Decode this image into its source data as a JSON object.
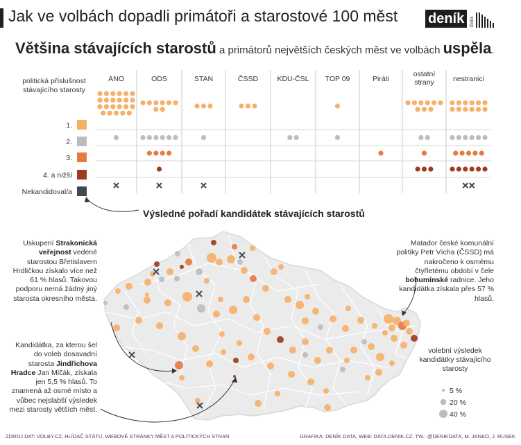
{
  "header": {
    "title": "Jak ve volbách dopadli primátoři a starostové 100 měst",
    "logo_main": "deník",
    "logo_sub": "data"
  },
  "subtitle": {
    "bold1": "Většina stávajících starostů",
    "normal": " a primátorů největších českých měst ve volbách ",
    "bold2": "uspěla",
    "dot": "."
  },
  "colors": {
    "rank1": "#f5b06a",
    "rank2": "#bdbdbd",
    "rank3": "#e77a3f",
    "rank4": "#9c3d22",
    "none": "#3d4a55"
  },
  "chart_data": [
    {
      "type": "table",
      "row_header": [
        "politická příslušnost",
        "stávajícího starosty"
      ],
      "columns": [
        "ANO",
        "ODS",
        "STAN",
        "ČSSD",
        "KDU-ČSL",
        "TOP 09",
        "Piráti",
        "ostatní strany",
        "nestranici"
      ],
      "rows": [
        "1.",
        "2.",
        "3.",
        "4. a nižší",
        "Nekandidoval/a"
      ],
      "caption": "Výsledné pořadí kandidátek stávajících starostů",
      "counts": [
        [
          23,
          8,
          3,
          3,
          0,
          1,
          0,
          9,
          12
        ],
        [
          1,
          6,
          1,
          0,
          2,
          1,
          0,
          2,
          6
        ],
        [
          0,
          4,
          0,
          0,
          0,
          0,
          1,
          1,
          5
        ],
        [
          0,
          1,
          0,
          0,
          0,
          0,
          0,
          3,
          6
        ],
        [
          1,
          1,
          1,
          0,
          0,
          0,
          0,
          0,
          2
        ]
      ]
    },
    {
      "type": "scatter",
      "legend_title": "volební výsledek kandidátky stávajícího starosty",
      "size_legend": [
        "5 %",
        "20 %",
        "40 %"
      ],
      "size_values": [
        5,
        20,
        40
      ]
    }
  ],
  "annotations": {
    "strakonice": {
      "t1": "Uskupení ",
      "b1": "Strakonická veřejnost",
      "t2": " vedené starostou Břetislavem Hrdličkou získalo více než 61 % hlasů. Takovou podporu nemá žádný jiný starosta okresního města."
    },
    "bohumin": {
      "t1": "Matador české komunální politiky Petr Vícha (ČSSD) má nakročeno k osmému čtyřletému období v čele ",
      "b1": "bohumínské",
      "t2": " radnice. Jeho kandidátka získala přes 57 % hlasů."
    },
    "jindrichuv": {
      "t1": "Kandidátka, za kterou šel do voleb dosavadní starosta ",
      "b1": "Jindřichova Hradce",
      "t2": " Jan Mlčák, získala jen 5,5 % hlasů. To znamená až osmé místo a vůbec nejslabší výsledek mezi starosty větších měst."
    }
  },
  "footer": {
    "left": "ZDROJ DAT: VOLBY.CZ, HLÍDAČ STÁTU, WEBOVÉ STRÁNKY MĚST A POLITICKÝCH STRAN",
    "right": "GRAFIKA: DENÍK DATA, WEB: DATA.DENIK.CZ, TW.: @DENIKDATA, M. JANKO, J. RUSEK"
  }
}
